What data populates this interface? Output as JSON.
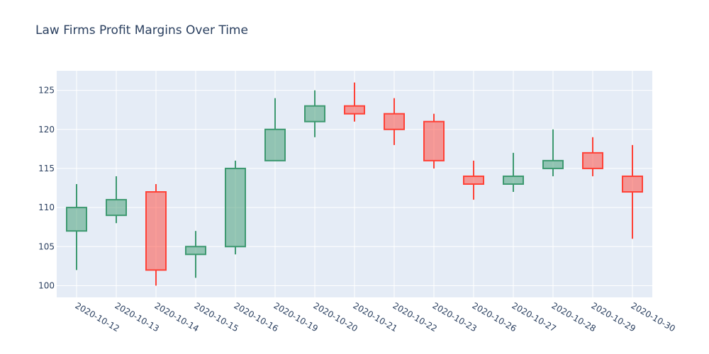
{
  "chart_data": {
    "type": "candlestick",
    "title": "Law Firms Profit Margins Over Time",
    "xlabel": "",
    "ylabel": "",
    "categories": [
      "2020-10-12",
      "2020-10-13",
      "2020-10-14",
      "2020-10-15",
      "2020-10-16",
      "2020-10-19",
      "2020-10-20",
      "2020-10-21",
      "2020-10-22",
      "2020-10-23",
      "2020-10-26",
      "2020-10-27",
      "2020-10-28",
      "2020-10-29",
      "2020-10-30"
    ],
    "open": [
      107,
      109,
      112,
      104,
      105,
      116,
      121,
      123,
      122,
      121,
      114,
      113,
      115,
      117,
      114
    ],
    "high": [
      113,
      114,
      113,
      107,
      116,
      124,
      125,
      126,
      124,
      122,
      116,
      117,
      120,
      119,
      118
    ],
    "low": [
      102,
      108,
      100,
      101,
      104,
      116,
      119,
      121,
      118,
      115,
      111,
      112,
      114,
      114,
      106
    ],
    "close": [
      110,
      111,
      102,
      105,
      115,
      120,
      123,
      122,
      120,
      116,
      113,
      114,
      116,
      115,
      112
    ],
    "ylim": [
      98.5,
      127.5
    ],
    "yticks": [
      100,
      105,
      110,
      115,
      120,
      125
    ],
    "grid": true,
    "colors": {
      "increasing_line": "#3d9970",
      "increasing_fill": "rgba(61,153,112,0.5)",
      "decreasing_line": "#ff4136",
      "decreasing_fill": "rgba(255,65,54,0.5)",
      "plot_bg": "#e5ecf6",
      "grid": "#ffffff",
      "text": "#2a3f5f"
    }
  }
}
